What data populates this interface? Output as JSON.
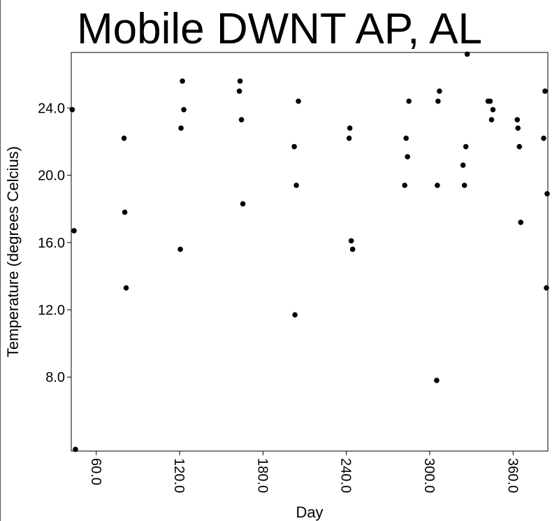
{
  "chart_data": {
    "type": "scatter",
    "title": "Mobile DWNT AP, AL",
    "xlabel": "Day",
    "ylabel": "Temperature (degrees Celcius)",
    "xlim": [
      42,
      385
    ],
    "ylim": [
      3.6,
      27.3
    ],
    "xticks": [
      60.0,
      120.0,
      180.0,
      240.0,
      300.0,
      360.0
    ],
    "yticks": [
      8.0,
      12.0,
      16.0,
      20.0,
      24.0
    ],
    "xtick_labels": [
      "60.0",
      "120.0",
      "180.0",
      "240.0",
      "300.0",
      "360.0"
    ],
    "ytick_labels": [
      "8.0",
      "12.0",
      "16.0",
      "20.0",
      "24.0"
    ],
    "grid": false,
    "marker_color": "#000000",
    "points": [
      {
        "x": 42.7,
        "y": 23.9
      },
      {
        "x": 44.0,
        "y": 16.7
      },
      {
        "x": 45.0,
        "y": 3.7
      },
      {
        "x": 80.0,
        "y": 22.2
      },
      {
        "x": 80.5,
        "y": 17.8
      },
      {
        "x": 81.5,
        "y": 13.3
      },
      {
        "x": 120.5,
        "y": 15.6
      },
      {
        "x": 121.0,
        "y": 22.8
      },
      {
        "x": 122.0,
        "y": 25.6
      },
      {
        "x": 123.0,
        "y": 23.9
      },
      {
        "x": 163.0,
        "y": 25.0
      },
      {
        "x": 163.5,
        "y": 25.6
      },
      {
        "x": 164.5,
        "y": 23.3
      },
      {
        "x": 165.5,
        "y": 18.3
      },
      {
        "x": 202.5,
        "y": 21.7
      },
      {
        "x": 203.0,
        "y": 11.7
      },
      {
        "x": 204.0,
        "y": 19.4
      },
      {
        "x": 205.5,
        "y": 24.4
      },
      {
        "x": 242.0,
        "y": 22.2
      },
      {
        "x": 242.5,
        "y": 22.8
      },
      {
        "x": 243.5,
        "y": 16.1
      },
      {
        "x": 244.5,
        "y": 15.6
      },
      {
        "x": 282.0,
        "y": 19.4
      },
      {
        "x": 283.0,
        "y": 22.2
      },
      {
        "x": 284.0,
        "y": 21.1
      },
      {
        "x": 285.0,
        "y": 24.4
      },
      {
        "x": 305.0,
        "y": 7.8
      },
      {
        "x": 305.5,
        "y": 19.4
      },
      {
        "x": 306.0,
        "y": 24.4
      },
      {
        "x": 307.0,
        "y": 25.0
      },
      {
        "x": 324.0,
        "y": 20.6
      },
      {
        "x": 325.0,
        "y": 19.4
      },
      {
        "x": 326.0,
        "y": 21.7
      },
      {
        "x": 327.0,
        "y": 27.2
      },
      {
        "x": 342.0,
        "y": 24.4
      },
      {
        "x": 343.5,
        "y": 24.4
      },
      {
        "x": 344.5,
        "y": 23.3
      },
      {
        "x": 345.5,
        "y": 23.9
      },
      {
        "x": 363.0,
        "y": 23.3
      },
      {
        "x": 363.5,
        "y": 22.8
      },
      {
        "x": 364.5,
        "y": 21.7
      },
      {
        "x": 365.5,
        "y": 17.2
      },
      {
        "x": 382.0,
        "y": 22.2
      },
      {
        "x": 383.0,
        "y": 25.0
      },
      {
        "x": 384.0,
        "y": 13.3
      },
      {
        "x": 384.5,
        "y": 18.9
      }
    ]
  }
}
